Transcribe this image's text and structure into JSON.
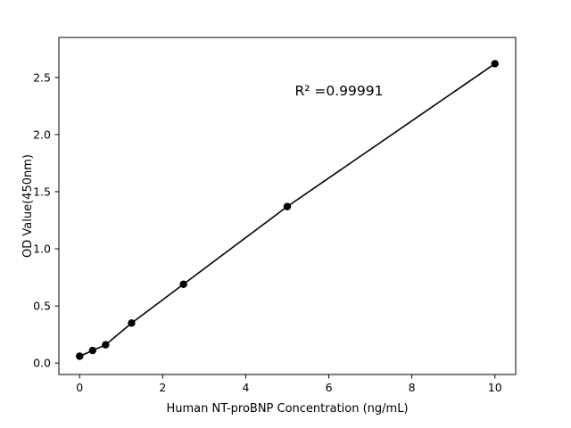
{
  "figure": {
    "background": "#ffffff"
  },
  "chart_data": {
    "type": "scatter",
    "title": "",
    "xlabel": "Human NT-proBNP Concentration (ng/mL)",
    "ylabel": "OD Value(450nm)",
    "annotation": "R² =0.99991",
    "series": [
      {
        "name": "standard-curve",
        "x": [
          0,
          0.3125,
          0.625,
          1.25,
          2.5,
          5,
          10
        ],
        "y": [
          0.06,
          0.11,
          0.16,
          0.35,
          0.69,
          1.37,
          2.62
        ],
        "marker": "circle",
        "line": "solid"
      }
    ],
    "xlim": [
      -0.5,
      10.5
    ],
    "ylim": [
      -0.1,
      2.85
    ],
    "xticks": {
      "values": [
        0,
        2,
        4,
        6,
        8,
        10
      ],
      "labels": [
        "0",
        "2",
        "4",
        "6",
        "8",
        "10"
      ]
    },
    "yticks": {
      "values": [
        0,
        0.5,
        1,
        1.5,
        2,
        2.5
      ],
      "labels": [
        "0.0",
        "0.5",
        "1.0",
        "1.5",
        "2.0",
        "2.5"
      ]
    },
    "grid": false,
    "legend": "none",
    "colors": {
      "line": "#000000",
      "marker": "#000000",
      "axis": "#000000",
      "background": "#ffffff"
    }
  }
}
